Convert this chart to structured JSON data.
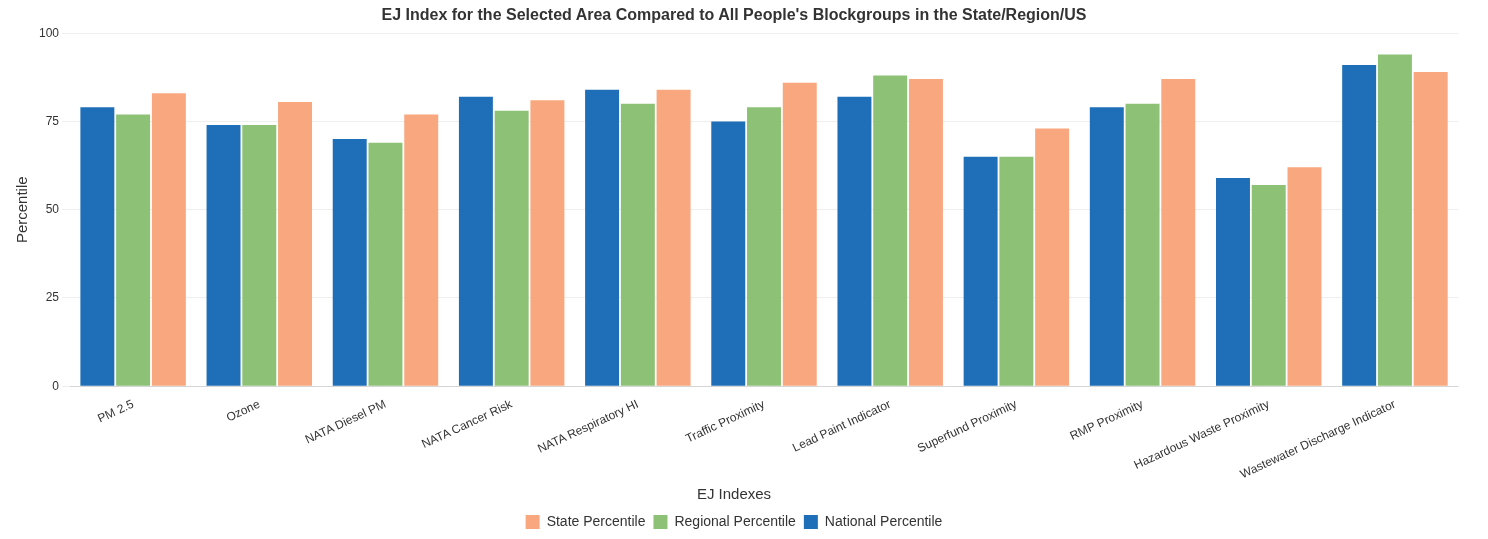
{
  "chart_data": {
    "type": "bar",
    "title": "EJ Index for the Selected Area Compared to All People's Blockgroups in the State/Region/US",
    "ylabel": "Percentile",
    "legend_title": "EJ Indexes",
    "categories": [
      "PM 2.5",
      "Ozone",
      "NATA Diesel PM",
      "NATA Cancer Risk",
      "NATA Respiratory HI",
      "Traffic Proximity",
      "Lead Paint Indicator",
      "Superfund Proximity",
      "RMP Proximity",
      "Hazardous Waste Proximity",
      "Wastewater Discharge Indicator"
    ],
    "series": [
      {
        "name": "National Percentile",
        "color": "#1f6fb8",
        "values": [
          79,
          74,
          70,
          82,
          84,
          75,
          82,
          65,
          79,
          59,
          91
        ]
      },
      {
        "name": "Regional Percentile",
        "color": "#8cc176",
        "values": [
          77,
          74,
          69,
          78,
          80,
          79,
          88,
          65,
          80,
          57,
          94
        ]
      },
      {
        "name": "State Percentile",
        "color": "#f8a77e",
        "values": [
          83,
          80.5,
          77,
          81,
          84,
          86,
          87,
          73,
          87,
          62,
          89
        ]
      }
    ],
    "ylim": [
      0,
      100
    ],
    "yticks": [
      0,
      25,
      50,
      75,
      100
    ],
    "grid": "y",
    "legend": "bottom"
  }
}
